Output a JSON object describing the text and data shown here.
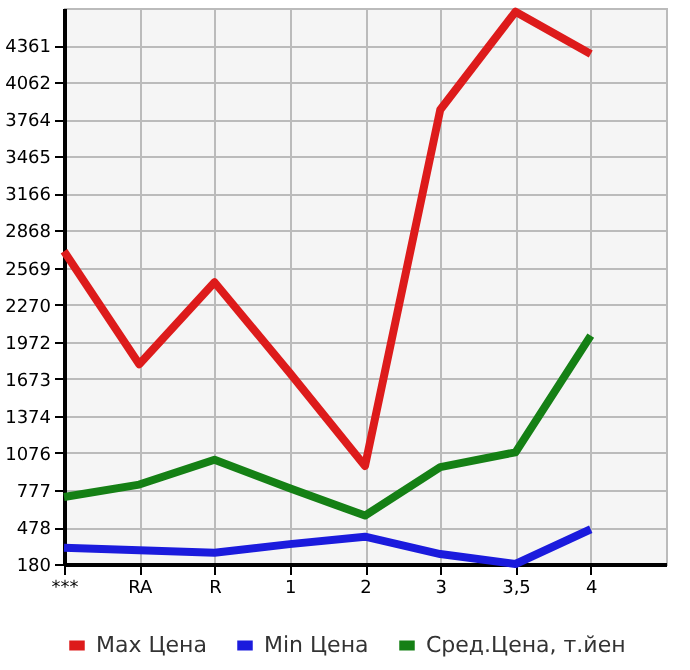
{
  "chart_data": {
    "type": "line",
    "categories": [
      "***",
      "RA",
      "R",
      "1",
      "2",
      "3",
      "3,5",
      "4"
    ],
    "series": [
      {
        "name": "Max Цена",
        "color": "#dd1b1b",
        "values": [
          2700,
          1790,
          2450,
          1720,
          970,
          3840,
          4630,
          4290
        ]
      },
      {
        "name": "Min Цена",
        "color": "#1b1bdd",
        "values": [
          310,
          290,
          270,
          340,
          400,
          260,
          180,
          460
        ]
      },
      {
        "name": "Сред.Цена, т.йен",
        "color": "#158015",
        "values": [
          720,
          820,
          1020,
          790,
          570,
          960,
          1080,
          2020
        ]
      }
    ],
    "ylim": [
      180,
      4660
    ],
    "yticks": [
      180,
      478,
      777,
      1076,
      1374,
      1673,
      1972,
      2270,
      2569,
      2868,
      3166,
      3465,
      3764,
      4062,
      4361
    ],
    "grid": true,
    "legend": "bottom",
    "marker": "none",
    "line_style": "solid"
  }
}
